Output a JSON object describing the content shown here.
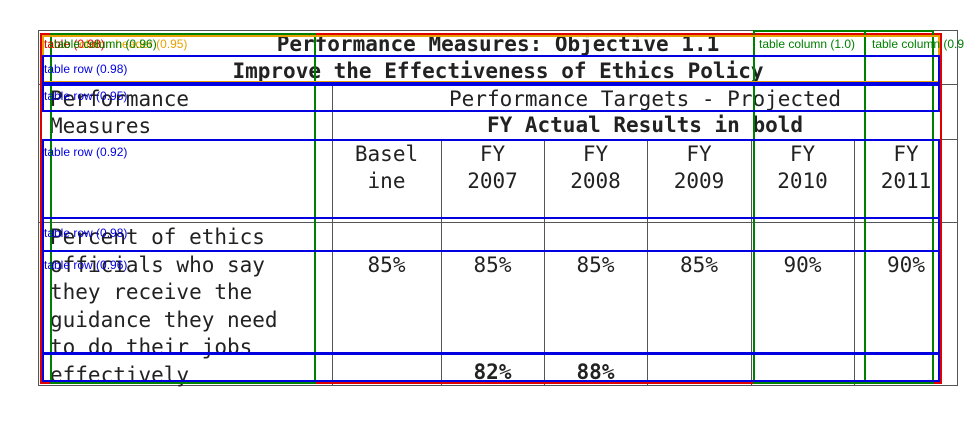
{
  "table": {
    "title": "Performance Measures: Objective 1.1",
    "subtitle": "Improve the Effectiveness of Ethics Policy",
    "header": {
      "measures_line1": "Performance",
      "measures_line2": "Measures",
      "targets_line1": "Performance Targets - Projected",
      "targets_line2": "FY Actual Results in bold"
    },
    "columns": [
      {
        "line1": "Basel",
        "line2": "ine"
      },
      {
        "line1": "FY",
        "line2": "2007"
      },
      {
        "line1": "FY",
        "line2": "2008"
      },
      {
        "line1": "FY",
        "line2": "2009"
      },
      {
        "line1": "FY",
        "line2": "2010"
      },
      {
        "line1": "FY",
        "line2": "2011"
      }
    ],
    "measure_lines": [
      "Percent of ethics",
      "officials who say",
      "they receive the",
      "guidance they need",
      "to do their jobs",
      "effectively"
    ],
    "targets": [
      "85%",
      "85%",
      "85%",
      "85%",
      "90%",
      "90%"
    ],
    "actuals": [
      "",
      "82%",
      "88%",
      "",
      "",
      ""
    ]
  },
  "annotations": {
    "table_label": "table (0.98)",
    "table_column_a_label": "table column (0.96)",
    "table_column_header_label": "table column header (0.95)",
    "table_column_b_label": "table column (1.0)",
    "table_column_c_label": "table column (0.9",
    "row_labels": [
      "table row (0.98)",
      "table row (0.95)",
      "table row (0.92)",
      "table row (0.98)",
      "table row (0.96)"
    ],
    "colors": {
      "table": "#e00000",
      "column": "#008000",
      "column_header": "#e8a000",
      "row": "#0000e0"
    }
  }
}
